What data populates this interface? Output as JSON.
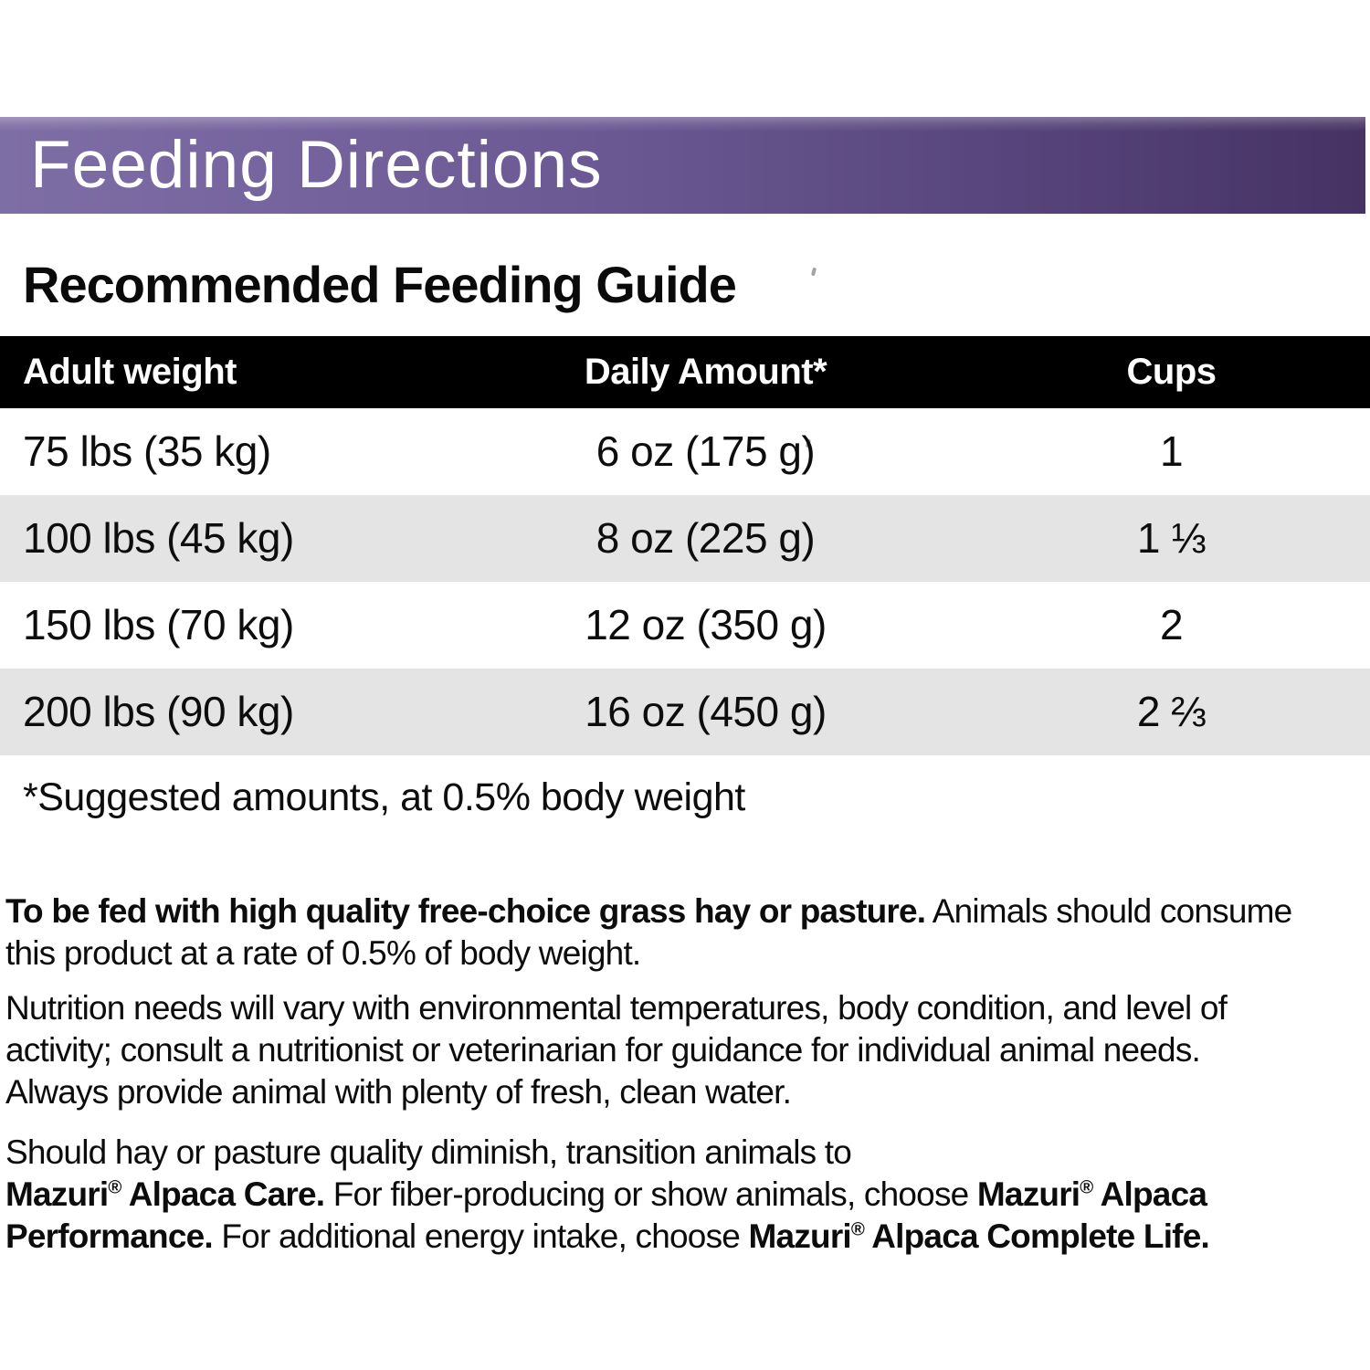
{
  "banner": {
    "title": "Feeding Directions",
    "gradient_left_color": "#7e6ea6",
    "gradient_right_color": "#463263",
    "text_color": "#ffffff"
  },
  "guide": {
    "heading": "Recommended Feeding Guide",
    "table": {
      "header_bg_color": "#000000",
      "header_text_color": "#ffffff",
      "alt_row_bg_color": "#e4e4e5",
      "headers": [
        "Adult weight",
        "Daily Amount*",
        "Cups"
      ],
      "rows": [
        [
          "75 lbs (35 kg)",
          "6 oz (175 g)",
          "1"
        ],
        [
          "100 lbs (45 kg)",
          "8 oz (225 g)",
          "1 ⅓"
        ],
        [
          "150 lbs (70 kg)",
          "12 oz (350 g)",
          "2"
        ],
        [
          "200 lbs (90 kg)",
          "16 oz (450 g)",
          "2 ⅔"
        ]
      ]
    },
    "footnote": "*Suggested amounts, at 0.5% body weight"
  },
  "paragraphs": [
    [
      {
        "t": "To be fed with high quality free-choice grass hay or pasture.",
        "b": true
      },
      {
        "t": " Animals should consume"
      },
      {
        "br": true
      },
      {
        "t": "this product at a rate of 0.5% of body weight."
      }
    ],
    [
      {
        "t": "Nutrition needs will vary with environmental temperatures, body condition, and level of"
      },
      {
        "br": true
      },
      {
        "t": "activity; consult a nutritionist or veterinarian for guidance for individual animal needs."
      },
      {
        "br": true
      },
      {
        "t": "Always provide animal with plenty of fresh, clean water."
      }
    ],
    [
      {
        "t": "Should hay or pasture quality diminish, transition animals to"
      },
      {
        "br": true
      },
      {
        "t": "Mazuri",
        "b": true
      },
      {
        "t": "®",
        "b": true,
        "sup": true
      },
      {
        "t": " Alpaca Care.",
        "b": true
      },
      {
        "t": " For fiber-producing or show animals, choose "
      },
      {
        "t": "Mazuri",
        "b": true
      },
      {
        "t": "®",
        "b": true,
        "sup": true
      },
      {
        "t": " Alpaca",
        "b": true
      },
      {
        "br": true
      },
      {
        "t": "Performance.",
        "b": true
      },
      {
        "t": " For additional energy intake, choose "
      },
      {
        "t": "Mazuri",
        "b": true
      },
      {
        "t": "®",
        "b": true,
        "sup": true
      },
      {
        "t": " Alpaca Complete Life.",
        "b": true
      }
    ]
  ]
}
